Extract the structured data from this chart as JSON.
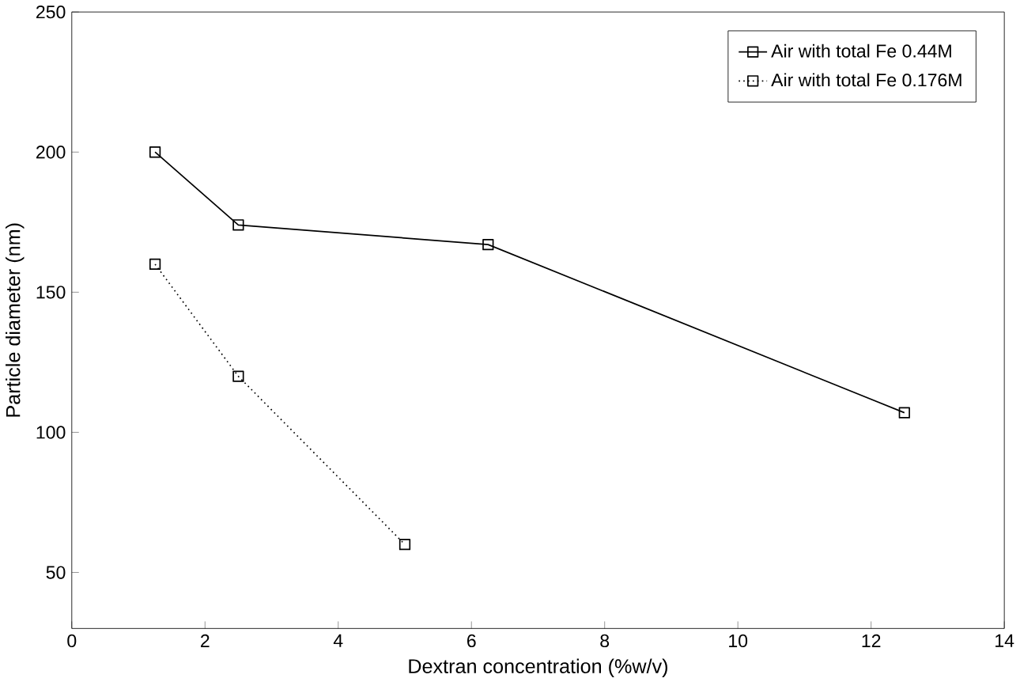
{
  "chart_data": {
    "type": "line",
    "xlabel": "Dextran concentration (%w/v)",
    "ylabel": "Particle diameter (nm)",
    "xlim": [
      0,
      14
    ],
    "ylim": [
      30,
      250
    ],
    "xticks": [
      0,
      2,
      4,
      6,
      8,
      10,
      12,
      14
    ],
    "yticks": [
      50,
      100,
      150,
      200,
      250
    ],
    "legend": "top right",
    "marker": "square",
    "grid": false,
    "series": [
      {
        "name": "Air with total Fe 0.44M",
        "color": "#000000",
        "line_style": "solid",
        "x": [
          1.25,
          2.5,
          6.25,
          12.5
        ],
        "values": [
          200,
          174,
          167,
          107
        ]
      },
      {
        "name": "Air with total Fe 0.176M",
        "color": "#000000",
        "line_style": "dotted",
        "x": [
          1.25,
          2.5,
          5
        ],
        "values": [
          160,
          120,
          60
        ]
      }
    ]
  }
}
